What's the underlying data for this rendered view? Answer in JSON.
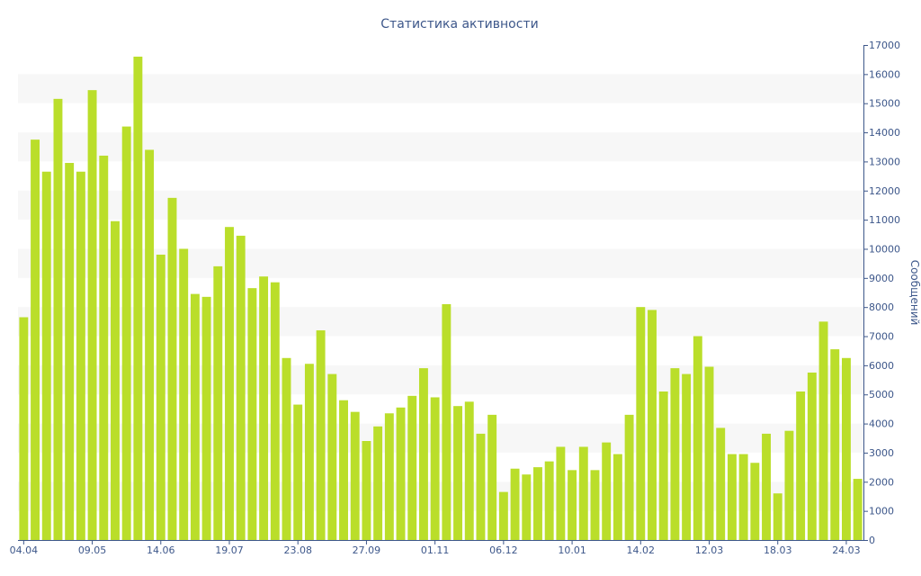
{
  "chart_data": {
    "type": "bar",
    "title": "Статистика активности",
    "xlabel": "",
    "ylabel": "Сообщений",
    "y_axis_side": "right",
    "ylim": [
      0,
      17000
    ],
    "yticks": [
      0,
      1000,
      2000,
      3000,
      4000,
      5000,
      6000,
      7000,
      8000,
      9000,
      10000,
      11000,
      12000,
      13000,
      14000,
      15000,
      16000,
      17000
    ],
    "grid": "alternating horizontal bands",
    "bar_color": "#bade2a",
    "text_color": "#3d578a",
    "x_tick_labels": [
      {
        "index": 0,
        "label": "04.04"
      },
      {
        "index": 6,
        "label": "09.05"
      },
      {
        "index": 12,
        "label": "14.06"
      },
      {
        "index": 18,
        "label": "19.07"
      },
      {
        "index": 24,
        "label": "23.08"
      },
      {
        "index": 30,
        "label": "27.09"
      },
      {
        "index": 36,
        "label": "01.11"
      },
      {
        "index": 42,
        "label": "06.12"
      },
      {
        "index": 48,
        "label": "10.01"
      },
      {
        "index": 54,
        "label": "14.02"
      },
      {
        "index": 60,
        "label": "12.03"
      },
      {
        "index": 66,
        "label": "18.03"
      },
      {
        "index": 72,
        "label": "24.03"
      }
    ],
    "values": [
      7650,
      13750,
      12650,
      15150,
      12950,
      12650,
      15450,
      13200,
      10950,
      14200,
      16600,
      13400,
      9800,
      11750,
      10000,
      8450,
      8350,
      9400,
      10750,
      10450,
      8650,
      9050,
      8850,
      6250,
      4650,
      6050,
      7200,
      5700,
      4800,
      4400,
      3400,
      3900,
      4350,
      4550,
      4950,
      5900,
      4900,
      8100,
      4600,
      4750,
      3650,
      4300,
      1650,
      2450,
      2250,
      2500,
      2700,
      3200,
      2400,
      3200,
      2400,
      3350,
      2950,
      4300,
      8000,
      7900,
      5100,
      5900,
      5700,
      7000,
      5950,
      3850,
      2950,
      2950,
      2650,
      3650,
      1600,
      3750,
      5100,
      5750,
      7500,
      6550,
      6250,
      2100
    ]
  }
}
